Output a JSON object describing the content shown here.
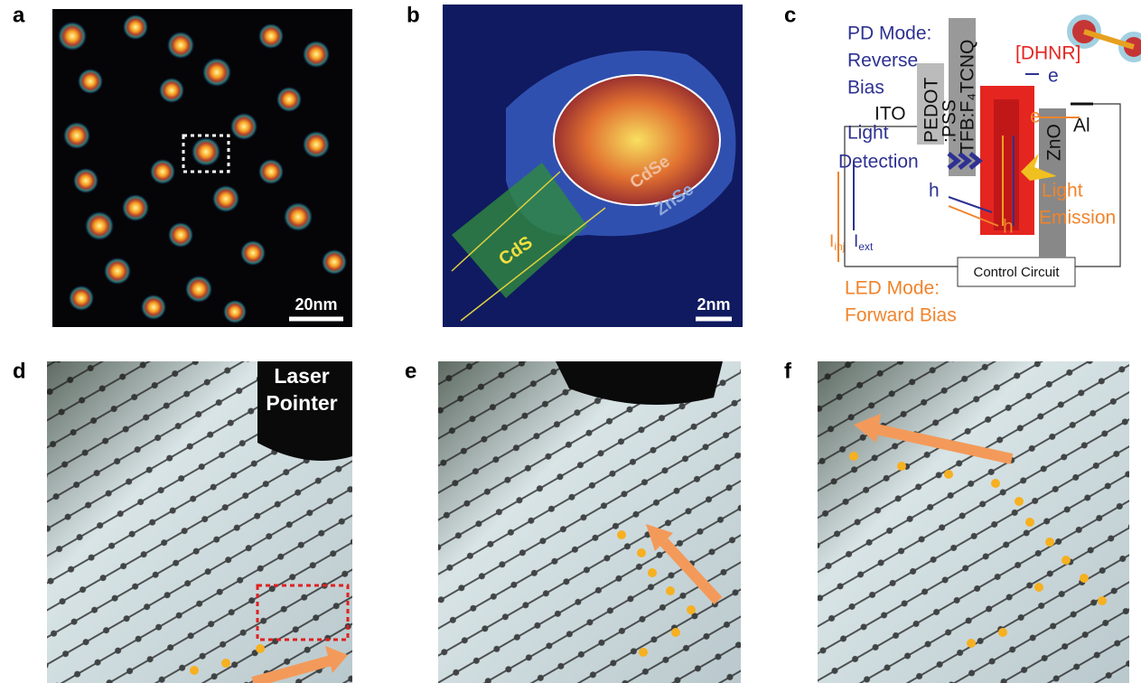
{
  "panels": [
    {
      "label": "a",
      "scale_bar": "20nm"
    },
    {
      "label": "b",
      "regions": [
        "CdS",
        "CdSe",
        "ZnSe"
      ],
      "scale_bar": "2nm"
    },
    {
      "label": "c",
      "pd_mode": [
        "PD Mode:",
        "Reverse",
        "Bias"
      ],
      "layers": [
        "ITO",
        "PEDOT",
        ":PSS",
        "TFB:F₄TCNQ",
        "ZnO",
        "Al"
      ],
      "active_layer": "[DHNR]",
      "carriers": [
        "e",
        "e",
        "h",
        "h"
      ],
      "light_detection": [
        "Light",
        "Detection"
      ],
      "light_emission": [
        "Light",
        "Emission"
      ],
      "currents": [
        {
          "symbol": "I",
          "sub": "inj"
        },
        {
          "symbol": "I",
          "sub": "ext"
        }
      ],
      "circuit": "Control Circuit",
      "led_mode": [
        "LED Mode:",
        "Forward Bias"
      ]
    },
    {
      "label": "d",
      "annotation": [
        "Laser",
        "Pointer"
      ]
    },
    {
      "label": "e"
    },
    {
      "label": "f"
    }
  ]
}
